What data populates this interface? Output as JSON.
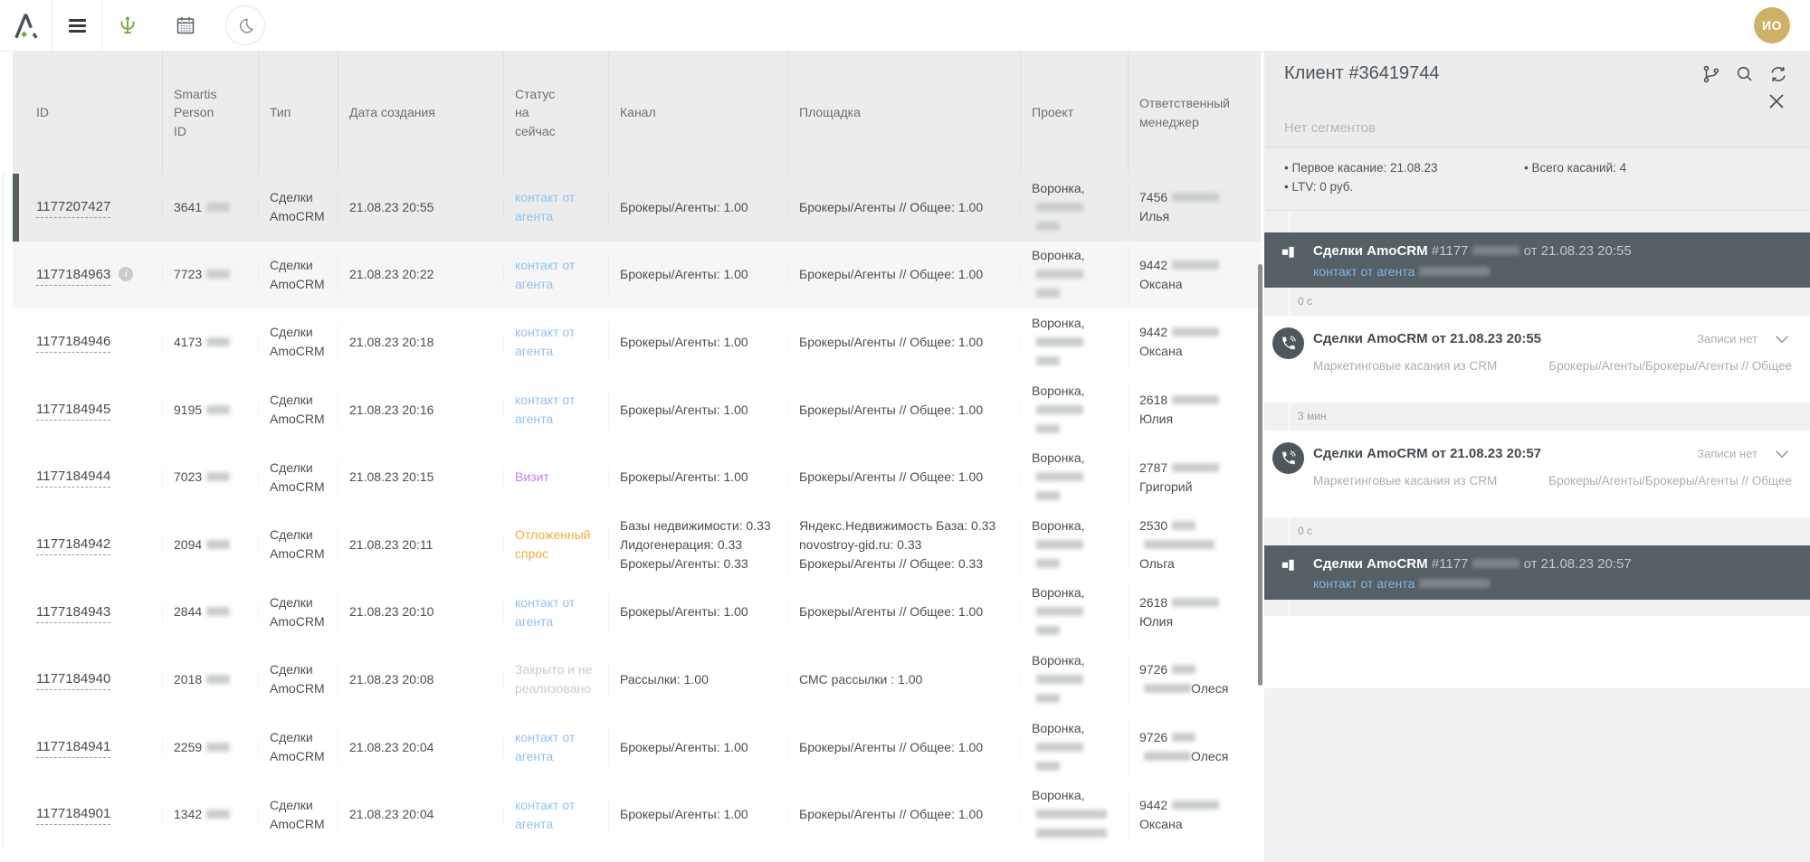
{
  "colors": {
    "accent_green": "#76b043",
    "dark_slate": "#565f63",
    "link_blue": "#7db6e8",
    "avatar_bg": "#cdb167",
    "status_contact": "#92c1ee",
    "status_visit": "#c97ef0",
    "status_deferred": "#f2ac3c",
    "status_closed": "#c9cdce"
  },
  "topbar": {
    "avatar_initials": "ИО",
    "icons": [
      "logo",
      "menu",
      "crm-plant",
      "calendar",
      "dark-mode-moon"
    ]
  },
  "table": {
    "columns": [
      {
        "label": "ID"
      },
      {
        "label": "Smartis\nPerson\nID"
      },
      {
        "label": "Тип"
      },
      {
        "label": "Дата создания"
      },
      {
        "label": "Статус\nна\nсейчас"
      },
      {
        "label": "Канал"
      },
      {
        "label": "Площадка"
      },
      {
        "label": "Проект"
      },
      {
        "label": "Ответственный\nменеджер"
      }
    ],
    "rows": [
      {
        "id": "1177207427",
        "selected": true,
        "info_icon": false,
        "person_prefix": "3641",
        "type": "Сделки AmoCRM",
        "created": "21.08.23 20:55",
        "status": "контакт от агента",
        "status_key": "contact",
        "channel": [
          "Брокеры/Агенты: 1.00"
        ],
        "platform": [
          "Брокеры/Агенты // Общее: 1.00"
        ],
        "project": [
          [
            {
              "t": "Воронка,"
            }
          ],
          [
            {
              "b": "m"
            }
          ],
          [
            {
              "b": "s"
            }
          ]
        ],
        "manager": [
          [
            {
              "t": "7456"
            },
            {
              "b": "m"
            }
          ],
          [
            {
              "t": "Илья"
            }
          ]
        ]
      },
      {
        "id": "1177184963",
        "selected": false,
        "info_icon": true,
        "person_prefix": "7723",
        "type": "Сделки AmoCRM",
        "created": "21.08.23 20:22",
        "status": "контакт от агента",
        "status_key": "contact",
        "channel": [
          "Брокеры/Агенты: 1.00"
        ],
        "platform": [
          "Брокеры/Агенты // Общее: 1.00"
        ],
        "project": [
          [
            {
              "t": "Воронка,"
            }
          ],
          [
            {
              "b": "m"
            }
          ],
          [
            {
              "b": "s"
            }
          ]
        ],
        "manager": [
          [
            {
              "t": "9442"
            },
            {
              "b": "m"
            }
          ],
          [
            {
              "t": "Оксана"
            }
          ]
        ]
      },
      {
        "id": "1177184946",
        "selected": false,
        "info_icon": false,
        "person_prefix": "4173",
        "type": "Сделки AmoCRM",
        "created": "21.08.23 20:18",
        "status": "контакт от агента",
        "status_key": "contact",
        "channel": [
          "Брокеры/Агенты: 1.00"
        ],
        "platform": [
          "Брокеры/Агенты // Общее: 1.00"
        ],
        "project": [
          [
            {
              "t": "Воронка,"
            }
          ],
          [
            {
              "b": "m"
            }
          ],
          [
            {
              "b": "s"
            }
          ]
        ],
        "manager": [
          [
            {
              "t": "9442"
            },
            {
              "b": "m"
            }
          ],
          [
            {
              "t": "Оксана"
            }
          ]
        ]
      },
      {
        "id": "1177184945",
        "selected": false,
        "info_icon": false,
        "person_prefix": "9195",
        "type": "Сделки AmoCRM",
        "created": "21.08.23 20:16",
        "status": "контакт от агента",
        "status_key": "contact",
        "channel": [
          "Брокеры/Агенты: 1.00"
        ],
        "platform": [
          "Брокеры/Агенты // Общее: 1.00"
        ],
        "project": [
          [
            {
              "t": "Воронка,"
            }
          ],
          [
            {
              "b": "m"
            }
          ],
          [
            {
              "b": "s"
            }
          ]
        ],
        "manager": [
          [
            {
              "t": "2618"
            },
            {
              "b": "m"
            }
          ],
          [
            {
              "t": "Юлия"
            }
          ]
        ]
      },
      {
        "id": "1177184944",
        "selected": false,
        "info_icon": false,
        "person_prefix": "7023",
        "type": "Сделки AmoCRM",
        "created": "21.08.23 20:15",
        "status": "Визит",
        "status_key": "visit",
        "channel": [
          "Брокеры/Агенты: 1.00"
        ],
        "platform": [
          "Брокеры/Агенты // Общее: 1.00"
        ],
        "project": [
          [
            {
              "t": "Воронка,"
            }
          ],
          [
            {
              "b": "m"
            }
          ],
          [
            {
              "b": "s"
            }
          ]
        ],
        "manager": [
          [
            {
              "t": "2787"
            },
            {
              "b": "m"
            }
          ],
          [
            {
              "t": "Григорий"
            }
          ]
        ]
      },
      {
        "id": "1177184942",
        "selected": false,
        "info_icon": false,
        "person_prefix": "2094",
        "type": "Сделки AmoCRM",
        "created": "21.08.23 20:11",
        "status": "Отложенный спрос",
        "status_key": "deferred",
        "channel": [
          "Базы недвижимости: 0.33",
          "Лидогенерация: 0.33",
          "Брокеры/Агенты: 0.33"
        ],
        "platform": [
          "Яндекс.Недвижимость База: 0.33",
          "novostroy-gid.ru: 0.33",
          "Брокеры/Агенты // Общее: 0.33"
        ],
        "project": [
          [
            {
              "t": "Воронка,"
            }
          ],
          [
            {
              "b": "m"
            }
          ],
          [
            {
              "b": "s"
            }
          ]
        ],
        "manager": [
          [
            {
              "t": "2530"
            },
            {
              "b": "s"
            }
          ],
          [
            {
              "b": "l"
            }
          ],
          [
            {
              "t": "Ольга"
            }
          ]
        ]
      },
      {
        "id": "1177184943",
        "selected": false,
        "info_icon": false,
        "person_prefix": "2844",
        "type": "Сделки AmoCRM",
        "created": "21.08.23 20:10",
        "status": "контакт от агента",
        "status_key": "contact",
        "channel": [
          "Брокеры/Агенты: 1.00"
        ],
        "platform": [
          "Брокеры/Агенты // Общее: 1.00"
        ],
        "project": [
          [
            {
              "t": "Воронка,"
            }
          ],
          [
            {
              "b": "m"
            }
          ],
          [
            {
              "b": "s"
            }
          ]
        ],
        "manager": [
          [
            {
              "t": "2618"
            },
            {
              "b": "m"
            }
          ],
          [
            {
              "t": "Юлия"
            }
          ]
        ]
      },
      {
        "id": "1177184940",
        "selected": false,
        "info_icon": false,
        "person_prefix": "2018",
        "type": "Сделки AmoCRM",
        "created": "21.08.23 20:08",
        "status": "Закрыто и не реализовано",
        "status_key": "closed",
        "channel": [
          "Рассылки: 1.00"
        ],
        "platform": [
          "СМС рассылки : 1.00"
        ],
        "project": [
          [
            {
              "t": "Воронка,"
            }
          ],
          [
            {
              "b": "m"
            }
          ],
          [
            {
              "b": "s"
            }
          ]
        ],
        "manager": [
          [
            {
              "t": "9726"
            },
            {
              "b": "s"
            }
          ],
          [
            {
              "b": "m"
            },
            {
              "t": "Олеся"
            }
          ]
        ]
      },
      {
        "id": "1177184941",
        "selected": false,
        "info_icon": false,
        "person_prefix": "2259",
        "type": "Сделки AmoCRM",
        "created": "21.08.23 20:04",
        "status": "контакт от агента",
        "status_key": "contact",
        "channel": [
          "Брокеры/Агенты: 1.00"
        ],
        "platform": [
          "Брокеры/Агенты // Общее: 1.00"
        ],
        "project": [
          [
            {
              "t": "Воронка,"
            }
          ],
          [
            {
              "b": "m"
            }
          ],
          [
            {
              "b": "s"
            }
          ]
        ],
        "manager": [
          [
            {
              "t": "9726"
            },
            {
              "b": "s"
            }
          ],
          [
            {
              "b": "m"
            },
            {
              "t": "Олеся"
            }
          ]
        ]
      },
      {
        "id": "1177184901",
        "selected": false,
        "info_icon": false,
        "person_prefix": "1342",
        "type": "Сделки AmoCRM",
        "created": "21.08.23 20:04",
        "status": "контакт от агента",
        "status_key": "contact",
        "channel": [
          "Брокеры/Агенты: 1.00"
        ],
        "platform": [
          "Брокеры/Агенты // Общее: 1.00"
        ],
        "project": [
          [
            {
              "t": "Воронка,"
            }
          ],
          [
            {
              "b": "l"
            }
          ],
          [
            {
              "b": "l"
            }
          ]
        ],
        "manager": [
          [
            {
              "t": "9442"
            },
            {
              "b": "m"
            }
          ],
          [
            {
              "t": "Оксана"
            }
          ]
        ]
      }
    ]
  },
  "panel": {
    "title": "Клиент #36419744",
    "icons": [
      "merge",
      "search",
      "refresh",
      "close"
    ],
    "segments_placeholder": "Нет сегментов",
    "stats_left": [
      "Первое касание: 21.08.23",
      "LTV: 0 руб."
    ],
    "stats_right": [
      "Всего касаний: 4"
    ],
    "timeline": [
      {
        "type": "deal",
        "brand": "Сделки AmoCRM",
        "num": "#1177",
        "date": "от 21.08.23 20:55",
        "status": "контакт от агента"
      },
      {
        "type": "gap",
        "label": "0 с"
      },
      {
        "type": "call",
        "title": "Сделки AmoCRM от 21.08.23 20:55",
        "record": "Записи нет",
        "source": "Маркетинговые касания из CRM",
        "channel": "Брокеры/Агенты/Брокеры/Агенты // Общее"
      },
      {
        "type": "gap",
        "label": "3 мин"
      },
      {
        "type": "call",
        "title": "Сделки AmoCRM от 21.08.23 20:57",
        "record": "Записи нет",
        "source": "Маркетинговые касания из CRM",
        "channel": "Брокеры/Агенты/Брокеры/Агенты // Общее"
      },
      {
        "type": "gap",
        "label": "0 с"
      },
      {
        "type": "deal",
        "brand": "Сделки AmoCRM",
        "num": "#1177",
        "date": "от 21.08.23 20:57",
        "status": "контакт от агента"
      }
    ]
  }
}
